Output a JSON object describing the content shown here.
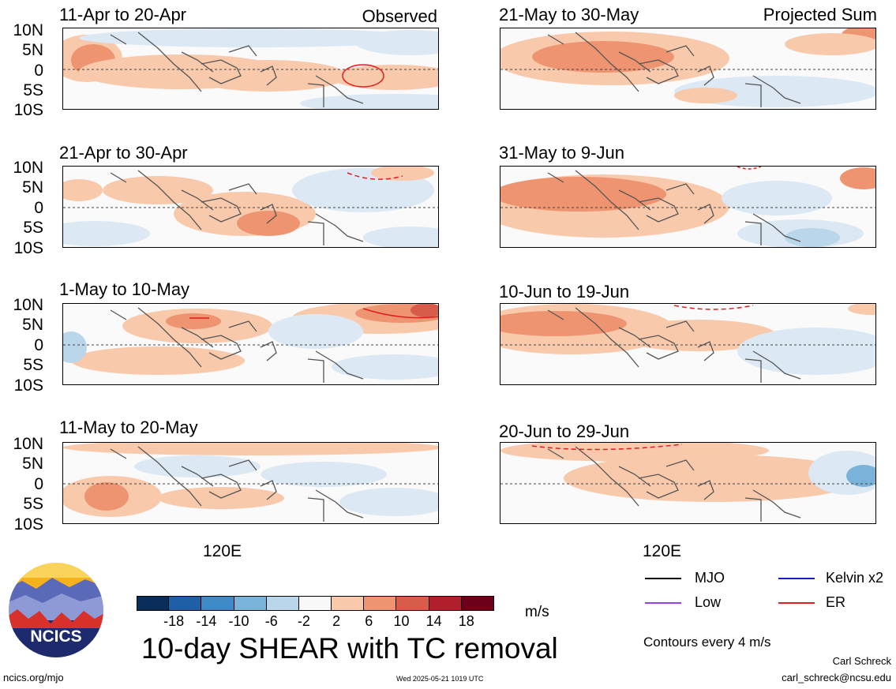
{
  "panels_left": [
    {
      "title": "11-Apr to 20-Apr",
      "corner": "Observed"
    },
    {
      "title": "21-Apr to 30-Apr",
      "corner": ""
    },
    {
      "title": "1-May to 10-May",
      "corner": ""
    },
    {
      "title": "11-May to 20-May",
      "corner": ""
    }
  ],
  "panels_right": [
    {
      "title": "21-May to 30-May",
      "corner": "Projected Sum"
    },
    {
      "title": "31-May to 9-Jun",
      "corner": ""
    },
    {
      "title": "10-Jun to 19-Jun",
      "corner": ""
    },
    {
      "title": "20-Jun to 29-Jun",
      "corner": ""
    }
  ],
  "lat_ticks": [
    "10N",
    "5N",
    "0",
    "5S",
    "10S"
  ],
  "lon_tick": "120E",
  "colorbar": {
    "labels": [
      "-18",
      "-14",
      "-10",
      "-6",
      "-2",
      "2",
      "6",
      "10",
      "14",
      "18"
    ],
    "colors": [
      "#0b2d5b",
      "#1f5fa6",
      "#3f8ac6",
      "#7ab3da",
      "#b9d6ea",
      "#f8f8f8",
      "#f9c9ac",
      "#ee9470",
      "#d85c4a",
      "#b0202c",
      "#6b0018"
    ],
    "unit": "m/s"
  },
  "legend": {
    "items": [
      {
        "label": "MJO",
        "color": "#000000"
      },
      {
        "label": "Kelvin x2",
        "color": "#1a1acc"
      },
      {
        "label": "Low",
        "color": "#9b3fe0"
      },
      {
        "label": "ER",
        "color": "#e01e1e"
      }
    ],
    "contours_note": "Contours every 4 m/s"
  },
  "main_title": "10-day SHEAR with TC removal",
  "logo_text": "NCICS",
  "footer": {
    "url": "ncics.org/mjo",
    "timestamp": "Wed 2025-05-21 1019 UTC",
    "author": "Carl Schreck",
    "email": "carl_schreck@ncsu.edu"
  }
}
